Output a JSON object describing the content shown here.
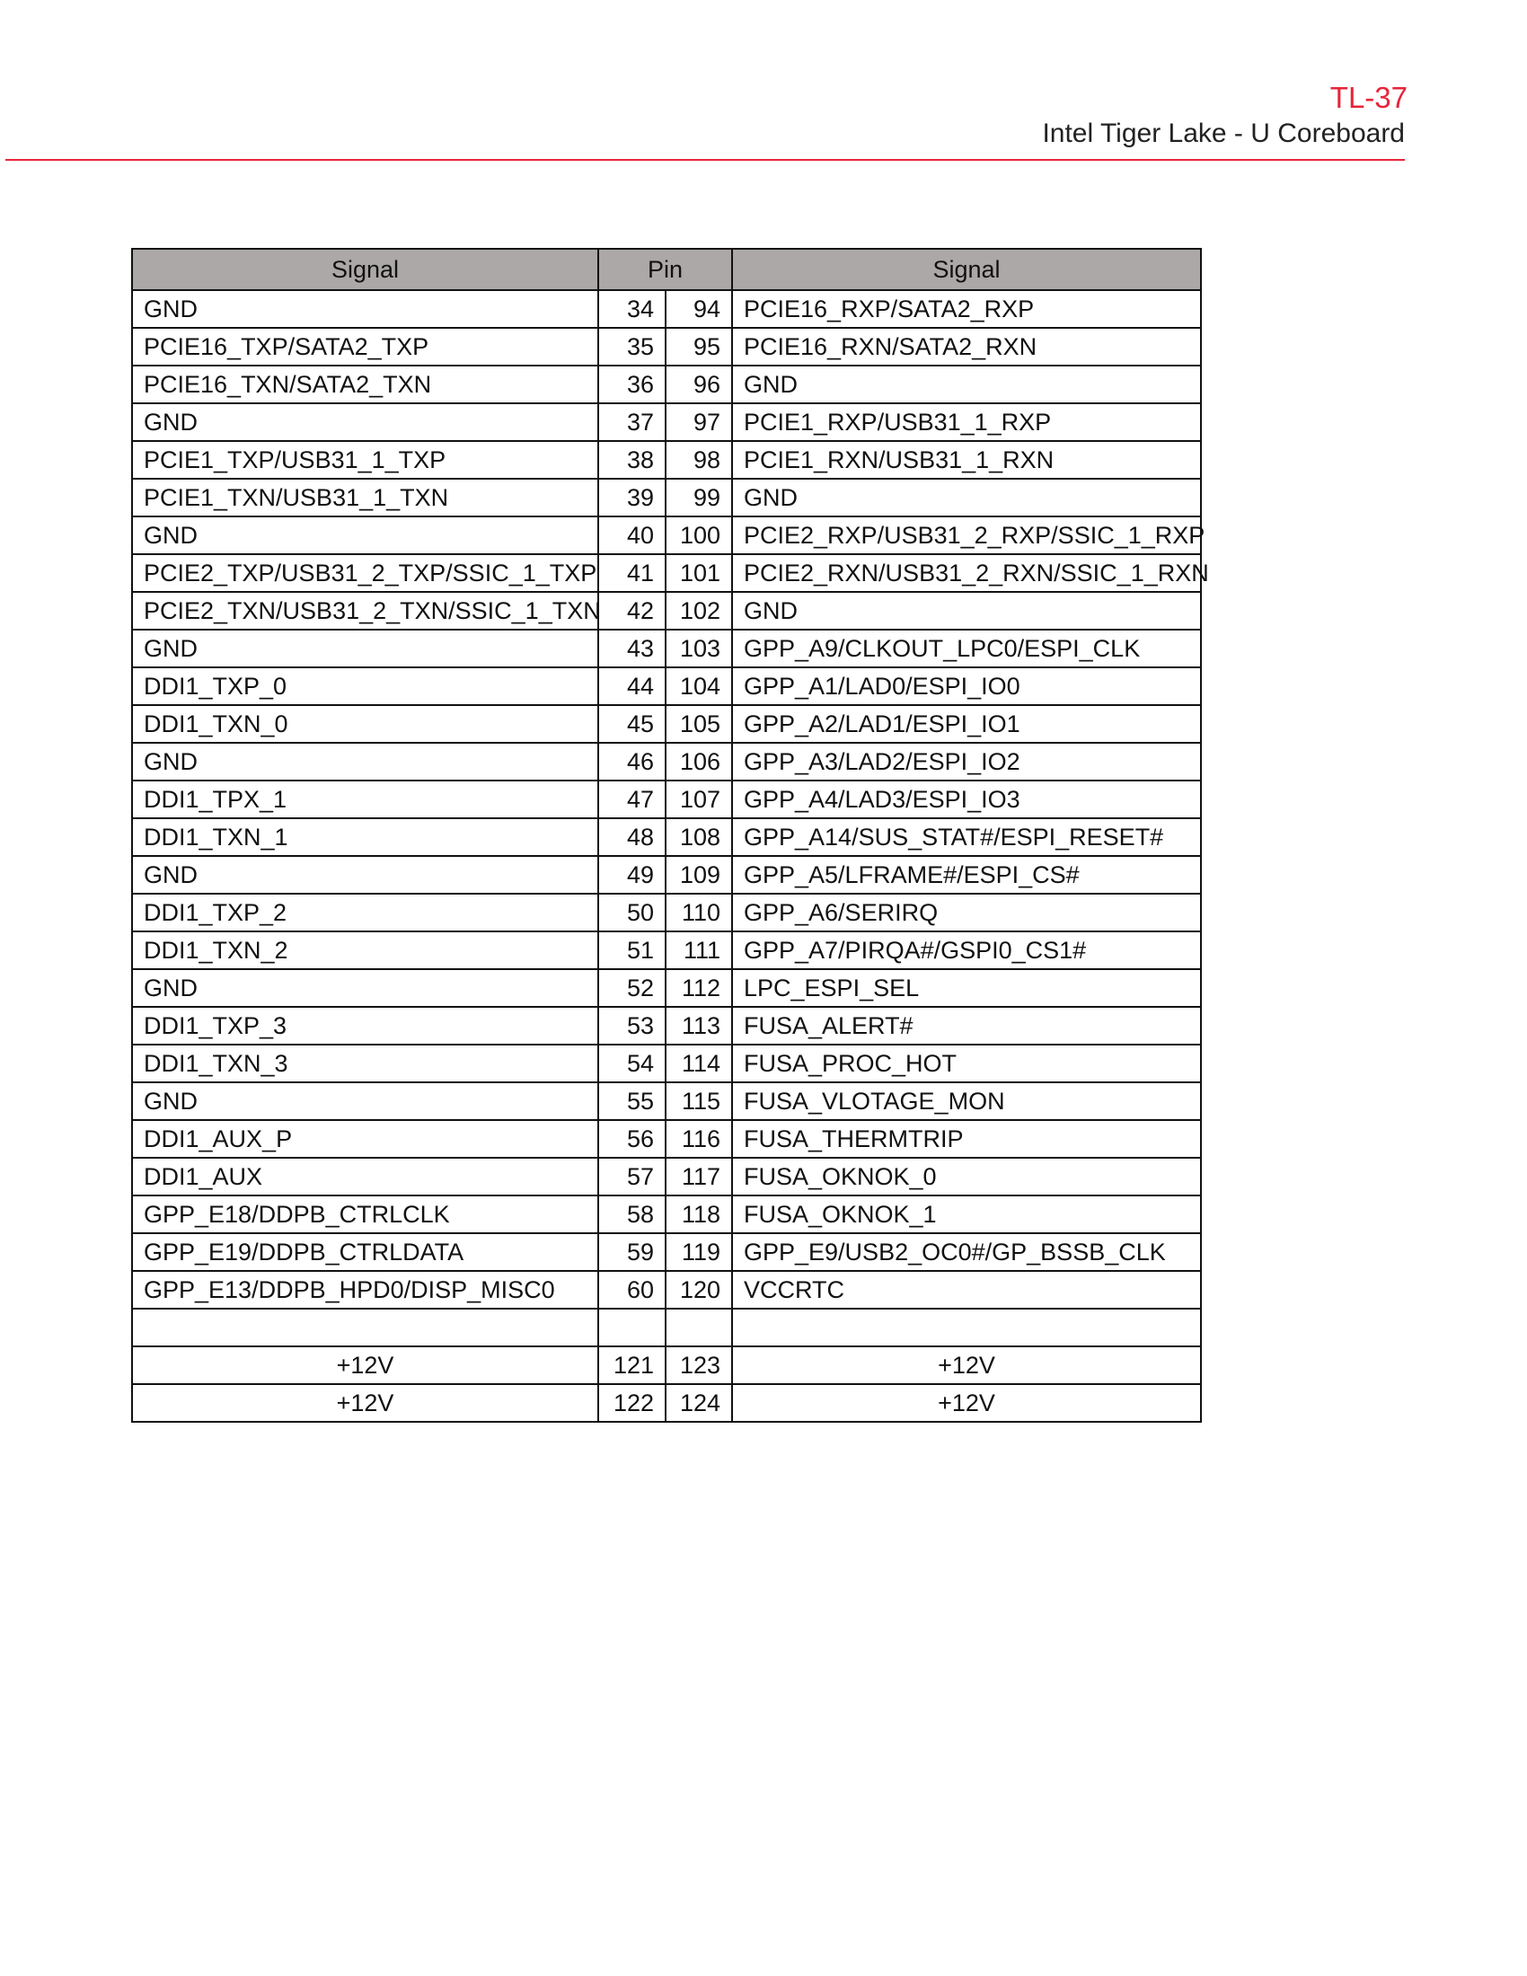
{
  "header": {
    "code": "TL-37",
    "title": "Intel Tiger Lake - U Coreboard",
    "accent_color": "#e8243a"
  },
  "table": {
    "columns": {
      "signal_left": "Signal",
      "pin": "Pin",
      "signal_right": "Signal"
    },
    "header_bg": "#aca8a7",
    "rows": [
      {
        "left": "GND",
        "pin_a": "34",
        "pin_b": "94",
        "right": "PCIE16_RXP/SATA2_RXP"
      },
      {
        "left": "PCIE16_TXP/SATA2_TXP",
        "pin_a": "35",
        "pin_b": "95",
        "right": "PCIE16_RXN/SATA2_RXN"
      },
      {
        "left": "PCIE16_TXN/SATA2_TXN",
        "pin_a": "36",
        "pin_b": "96",
        "right": "GND"
      },
      {
        "left": "GND",
        "pin_a": "37",
        "pin_b": "97",
        "right": "PCIE1_RXP/USB31_1_RXP"
      },
      {
        "left": "PCIE1_TXP/USB31_1_TXP",
        "pin_a": "38",
        "pin_b": "98",
        "right": "PCIE1_RXN/USB31_1_RXN"
      },
      {
        "left": "PCIE1_TXN/USB31_1_TXN",
        "pin_a": "39",
        "pin_b": "99",
        "right": "GND"
      },
      {
        "left": "GND",
        "pin_a": "40",
        "pin_b": "100",
        "right": "PCIE2_RXP/USB31_2_RXP/SSIC_1_RXP"
      },
      {
        "left": "PCIE2_TXP/USB31_2_TXP/SSIC_1_TXP",
        "pin_a": "41",
        "pin_b": "101",
        "right": "PCIE2_RXN/USB31_2_RXN/SSIC_1_RXN"
      },
      {
        "left": "PCIE2_TXN/USB31_2_TXN/SSIC_1_TXN",
        "pin_a": "42",
        "pin_b": "102",
        "right": "GND"
      },
      {
        "left": "GND",
        "pin_a": "43",
        "pin_b": "103",
        "right": "GPP_A9/CLKOUT_LPC0/ESPI_CLK"
      },
      {
        "left": "DDI1_TXP_0",
        "pin_a": "44",
        "pin_b": "104",
        "right": "GPP_A1/LAD0/ESPI_IO0"
      },
      {
        "left": "DDI1_TXN_0",
        "pin_a": "45",
        "pin_b": "105",
        "right": "GPP_A2/LAD1/ESPI_IO1"
      },
      {
        "left": "GND",
        "pin_a": "46",
        "pin_b": "106",
        "right": "GPP_A3/LAD2/ESPI_IO2"
      },
      {
        "left": "DDI1_TPX_1",
        "pin_a": "47",
        "pin_b": "107",
        "right": "GPP_A4/LAD3/ESPI_IO3"
      },
      {
        "left": "DDI1_TXN_1",
        "pin_a": "48",
        "pin_b": "108",
        "right": "GPP_A14/SUS_STAT#/ESPI_RESET#"
      },
      {
        "left": "GND",
        "pin_a": "49",
        "pin_b": "109",
        "right": "GPP_A5/LFRAME#/ESPI_CS#"
      },
      {
        "left": "DDI1_TXP_2",
        "pin_a": "50",
        "pin_b": "110",
        "right": "GPP_A6/SERIRQ"
      },
      {
        "left": "DDI1_TXN_2",
        "pin_a": "51",
        "pin_b": "111",
        "right": "GPP_A7/PIRQA#/GSPI0_CS1#"
      },
      {
        "left": "GND",
        "pin_a": "52",
        "pin_b": "112",
        "right": "LPC_ESPI_SEL"
      },
      {
        "left": "DDI1_TXP_3",
        "pin_a": "53",
        "pin_b": "113",
        "right": "FUSA_ALERT#"
      },
      {
        "left": "DDI1_TXN_3",
        "pin_a": "54",
        "pin_b": "114",
        "right": "FUSA_PROC_HOT"
      },
      {
        "left": "GND",
        "pin_a": "55",
        "pin_b": "115",
        "right": "FUSA_VLOTAGE_MON"
      },
      {
        "left": "DDI1_AUX_P",
        "pin_a": "56",
        "pin_b": "116",
        "right": "FUSA_THERMTRIP"
      },
      {
        "left": "DDI1_AUX",
        "pin_a": "57",
        "pin_b": "117",
        "right": "FUSA_OKNOK_0"
      },
      {
        "left": "GPP_E18/DDPB_CTRLCLK",
        "pin_a": "58",
        "pin_b": "118",
        "right": "FUSA_OKNOK_1"
      },
      {
        "left": "GPP_E19/DDPB_CTRLDATA",
        "pin_a": "59",
        "pin_b": "119",
        "right": "GPP_E9/USB2_OC0#/GP_BSSB_CLK"
      },
      {
        "left": "GPP_E13/DDPB_HPD0/DISP_MISC0",
        "pin_a": "60",
        "pin_b": "120",
        "right": "VCCRTC"
      },
      {
        "left": "",
        "pin_a": "",
        "pin_b": "",
        "right": ""
      },
      {
        "left": "+12V",
        "pin_a": "121",
        "pin_b": "123",
        "right": "+12V",
        "centered": true
      },
      {
        "left": "+12V",
        "pin_a": "122",
        "pin_b": "124",
        "right": "+12V",
        "centered": true
      }
    ]
  }
}
